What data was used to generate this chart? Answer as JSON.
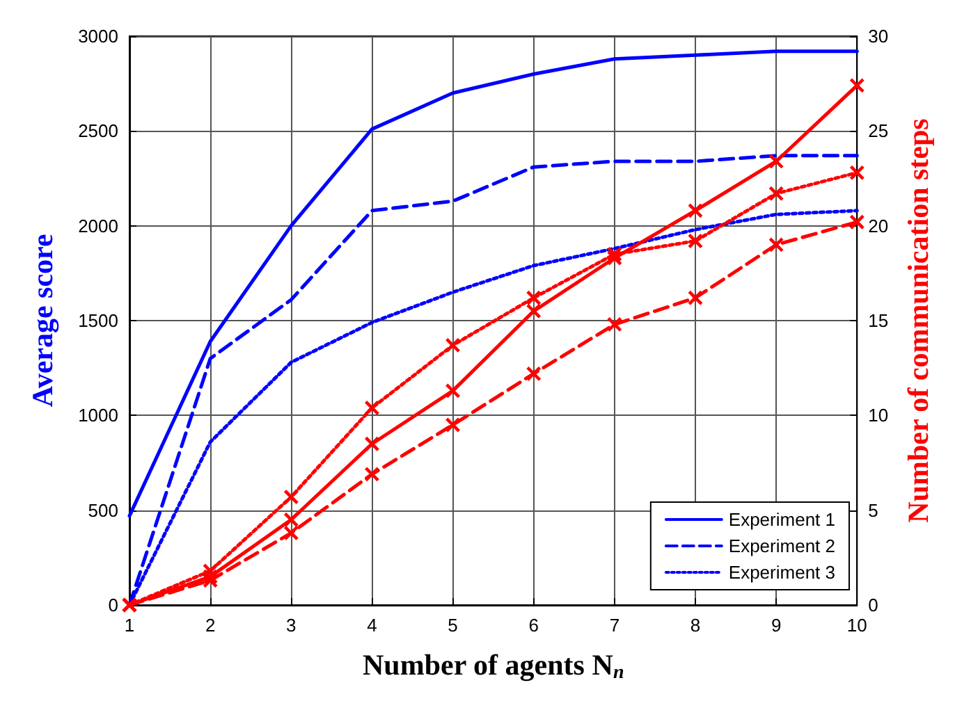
{
  "chart_data": {
    "type": "line",
    "xlabel": "Number of agents N$_{n}$",
    "ylabel": "Average score",
    "y2label": "Number of communication steps",
    "x": [
      1,
      2,
      3,
      4,
      5,
      6,
      7,
      8,
      9,
      10
    ],
    "series": [
      {
        "name": "Experiment 1",
        "color": "#0000ff",
        "line_style": "solid",
        "marker": "none",
        "values": [
          470,
          1390,
          2000,
          2510,
          2700,
          2800,
          2880,
          2900,
          2920,
          2920
        ]
      },
      {
        "name": "Experiment 2",
        "color": "#0000ff",
        "line_style": "dashed",
        "marker": "none",
        "values": [
          0,
          1300,
          1610,
          2080,
          2130,
          2310,
          2340,
          2340,
          2370,
          2370
        ]
      },
      {
        "name": "Experiment 3",
        "color": "#0000ff",
        "line_style": "dotted",
        "marker": "none",
        "values": [
          0,
          860,
          1280,
          1490,
          1650,
          1790,
          1880,
          1980,
          2060,
          2080
        ]
      },
      {
        "color": "#ff0000",
        "line_style": "solid",
        "marker": "cross",
        "axis": "y2",
        "values": [
          0,
          1.5,
          4.5,
          8.5,
          11.3,
          15.5,
          18.3,
          20.8,
          23.4,
          27.4
        ]
      },
      {
        "color": "#ff0000",
        "line_style": "dashed",
        "marker": "cross",
        "axis": "y2",
        "values": [
          0,
          1.3,
          3.8,
          6.9,
          9.5,
          12.2,
          14.8,
          16.2,
          19.0,
          20.2
        ]
      },
      {
        "color": "#ff0000",
        "line_style": "dotted",
        "marker": "cross",
        "axis": "y2",
        "values": [
          0,
          1.8,
          5.7,
          10.4,
          13.7,
          16.2,
          18.5,
          19.2,
          21.7,
          22.8
        ]
      }
    ],
    "xlim": [
      1,
      10
    ],
    "xticks": [
      1,
      2,
      3,
      4,
      5,
      6,
      7,
      8,
      9,
      10
    ],
    "ylim": [
      0,
      3000
    ],
    "yticks": [
      0,
      500,
      1000,
      1500,
      2000,
      2500,
      3000
    ],
    "y2lim": [
      0,
      30
    ],
    "y2ticks": [
      0,
      5,
      10,
      15,
      20,
      25,
      30
    ],
    "grid": true,
    "legend": "bottom right"
  }
}
